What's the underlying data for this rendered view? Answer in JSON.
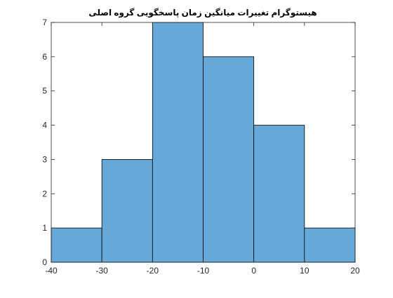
{
  "chart_data": {
    "type": "bar",
    "subtype": "histogram",
    "title": "هیستوگرام تغییرات میانگین زمان پاسخگویی گروه اصلی",
    "xlabel": "",
    "ylabel": "",
    "bins": [
      {
        "from": -40,
        "to": -30,
        "count": 1
      },
      {
        "from": -30,
        "to": -20,
        "count": 3
      },
      {
        "from": -20,
        "to": -10,
        "count": 7
      },
      {
        "from": -10,
        "to": 0,
        "count": 6
      },
      {
        "from": 0,
        "to": 10,
        "count": 4
      },
      {
        "from": 10,
        "to": 20,
        "count": 1
      }
    ],
    "xlim": [
      -40,
      20
    ],
    "ylim": [
      0,
      7
    ],
    "xticks": [
      "-40",
      "-30",
      "-20",
      "-10",
      "0",
      "10",
      "20"
    ],
    "yticks": [
      "0",
      "1",
      "2",
      "3",
      "4",
      "5",
      "6",
      "7"
    ],
    "grid": false,
    "legend": "none",
    "bar_color": "#66a8d7",
    "edge_color": "#000000",
    "axis_color": "#262626"
  }
}
